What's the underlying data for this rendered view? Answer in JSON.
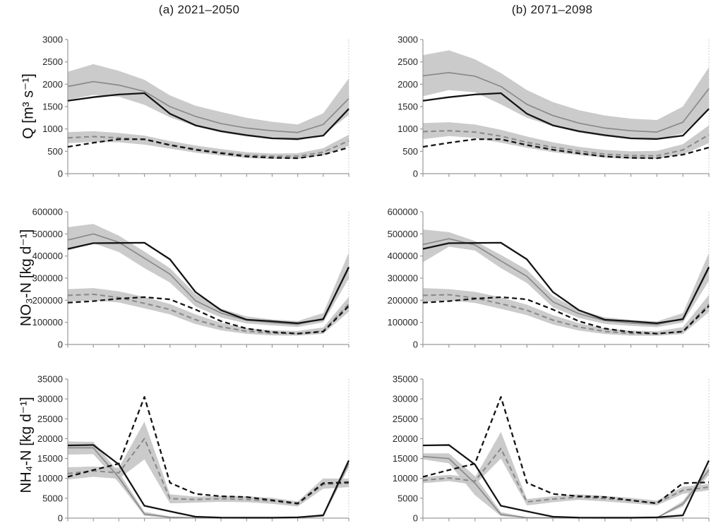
{
  "figure": {
    "column_titles": [
      "(a)  2021–2050",
      "(b)  2071–2098"
    ],
    "row_labels": [
      "Q [m³ s⁻¹]",
      "NO₃-N [kg d⁻¹]",
      "NH₄-N [kg d⁻¹]"
    ],
    "colors": {
      "band": "#c7c7c7",
      "gray_line": "#8a8a8a",
      "black_line": "#141414",
      "axis": "#9a9a9a",
      "text": "#262626",
      "background": "#ffffff"
    }
  },
  "chart_data": [
    {
      "type": "line",
      "panel": "a-Q",
      "title": "(a)  2021–2050",
      "ylabel": "Q [m³ s⁻¹]",
      "x": [
        1,
        2,
        3,
        4,
        5,
        6,
        7,
        8,
        9,
        10,
        11,
        12
      ],
      "xticklabels": [],
      "ylim": [
        0,
        3000
      ],
      "ytick_step": 500,
      "grid": false,
      "legend": "none",
      "series": [
        {
          "name": "gray_solid_mean",
          "color": "#8a8a8a",
          "dashed": false,
          "values": [
            1950,
            2060,
            1980,
            1840,
            1500,
            1280,
            1120,
            1020,
            960,
            920,
            1100,
            1680
          ],
          "band_upper": [
            2280,
            2450,
            2300,
            2100,
            1750,
            1520,
            1380,
            1250,
            1160,
            1100,
            1350,
            2130
          ],
          "band_lower": [
            1650,
            1760,
            1720,
            1540,
            1260,
            1060,
            920,
            830,
            780,
            740,
            870,
            1310
          ]
        },
        {
          "name": "black_solid_reference",
          "color": "#141414",
          "dashed": false,
          "values": [
            1630,
            1710,
            1770,
            1800,
            1340,
            1080,
            950,
            860,
            790,
            775,
            850,
            1450
          ]
        },
        {
          "name": "gray_dashed_mean",
          "color": "#8a8a8a",
          "dashed": true,
          "values": [
            800,
            830,
            800,
            760,
            645,
            550,
            475,
            415,
            390,
            390,
            480,
            735
          ],
          "band_upper": [
            930,
            950,
            910,
            850,
            730,
            630,
            550,
            480,
            450,
            455,
            570,
            870
          ],
          "band_lower": [
            680,
            710,
            700,
            650,
            560,
            470,
            405,
            350,
            330,
            330,
            410,
            620
          ]
        },
        {
          "name": "black_dashed_reference",
          "color": "#141414",
          "dashed": true,
          "values": [
            600,
            690,
            770,
            770,
            640,
            535,
            455,
            385,
            355,
            345,
            425,
            585
          ]
        }
      ]
    },
    {
      "type": "line",
      "panel": "b-Q",
      "title": "(b)  2071–2098",
      "ylabel": "Q [m³ s⁻¹]",
      "x": [
        1,
        2,
        3,
        4,
        5,
        6,
        7,
        8,
        9,
        10,
        11,
        12
      ],
      "xticklabels": [],
      "ylim": [
        0,
        3000
      ],
      "ytick_step": 500,
      "grid": false,
      "legend": "none",
      "series": [
        {
          "name": "gray_solid_mean",
          "color": "#8a8a8a",
          "dashed": false,
          "values": [
            2190,
            2260,
            2180,
            1950,
            1550,
            1300,
            1130,
            1020,
            960,
            930,
            1150,
            1900
          ],
          "band_upper": [
            2650,
            2760,
            2560,
            2250,
            1870,
            1600,
            1420,
            1300,
            1230,
            1200,
            1500,
            2380
          ],
          "band_lower": [
            1730,
            1870,
            1820,
            1550,
            1250,
            1060,
            920,
            830,
            780,
            760,
            900,
            1450
          ]
        },
        {
          "name": "black_solid_reference",
          "color": "#141414",
          "dashed": false,
          "values": [
            1630,
            1710,
            1770,
            1800,
            1340,
            1080,
            950,
            860,
            790,
            775,
            850,
            1450
          ]
        },
        {
          "name": "gray_dashed_mean",
          "color": "#8a8a8a",
          "dashed": true,
          "values": [
            940,
            960,
            930,
            840,
            700,
            590,
            505,
            435,
            405,
            400,
            530,
            870
          ],
          "band_upper": [
            1130,
            1150,
            1100,
            980,
            830,
            700,
            600,
            530,
            500,
            510,
            660,
            1080
          ],
          "band_lower": [
            770,
            840,
            800,
            690,
            580,
            480,
            415,
            355,
            330,
            330,
            430,
            680
          ]
        },
        {
          "name": "black_dashed_reference",
          "color": "#141414",
          "dashed": true,
          "values": [
            600,
            690,
            770,
            770,
            640,
            535,
            455,
            385,
            355,
            345,
            425,
            585
          ]
        }
      ]
    },
    {
      "type": "line",
      "panel": "a-NO3",
      "title": "(a)  2021–2050",
      "ylabel": "NO₃-N [kg d⁻¹]",
      "x": [
        1,
        2,
        3,
        4,
        5,
        6,
        7,
        8,
        9,
        10,
        11,
        12
      ],
      "xticklabels": [],
      "ylim": [
        0,
        600000
      ],
      "ytick_step": 100000,
      "grid": false,
      "legend": "none",
      "series": [
        {
          "name": "gray_solid_mean",
          "color": "#8a8a8a",
          "dashed": false,
          "values": [
            472000,
            500000,
            462000,
            390000,
            318000,
            198000,
            142000,
            110000,
            99000,
            91000,
            118000,
            345000
          ],
          "band_upper": [
            530000,
            545000,
            492000,
            420000,
            345000,
            228000,
            162000,
            127000,
            113000,
            106000,
            142000,
            415000
          ],
          "band_lower": [
            425000,
            458000,
            418000,
            345000,
            280000,
            172000,
            122000,
            95000,
            86000,
            79000,
            100000,
            298000
          ]
        },
        {
          "name": "black_solid_reference",
          "color": "#141414",
          "dashed": false,
          "values": [
            432000,
            458000,
            459000,
            460000,
            385000,
            237000,
            155000,
            112000,
            105000,
            96000,
            114000,
            350000
          ]
        },
        {
          "name": "gray_dashed_mean",
          "color": "#8a8a8a",
          "dashed": true,
          "values": [
            222000,
            227000,
            212000,
            186000,
            158000,
            112000,
            80000,
            60000,
            51000,
            49000,
            61000,
            183000
          ],
          "band_upper": [
            250000,
            255000,
            240000,
            215000,
            183000,
            136000,
            98000,
            74000,
            64000,
            61000,
            77000,
            215000
          ],
          "band_lower": [
            194000,
            200000,
            190000,
            163000,
            136000,
            92000,
            64000,
            48000,
            41000,
            40000,
            48000,
            148000
          ]
        },
        {
          "name": "black_dashed_reference",
          "color": "#141414",
          "dashed": true,
          "values": [
            189000,
            196000,
            207000,
            214000,
            204000,
            158000,
            105000,
            72000,
            56000,
            49000,
            58000,
            174000
          ]
        }
      ]
    },
    {
      "type": "line",
      "panel": "b-NO3",
      "title": "(b)  2071–2098",
      "ylabel": "NO₃-N [kg d⁻¹]",
      "x": [
        1,
        2,
        3,
        4,
        5,
        6,
        7,
        8,
        9,
        10,
        11,
        12
      ],
      "xticklabels": [],
      "ylim": [
        0,
        600000
      ],
      "ytick_step": 100000,
      "grid": false,
      "legend": "none",
      "series": [
        {
          "name": "gray_solid_mean",
          "color": "#8a8a8a",
          "dashed": false,
          "values": [
            452000,
            478000,
            450000,
            378000,
            308000,
            193000,
            139000,
            108000,
            97000,
            90000,
            118000,
            343000
          ],
          "band_upper": [
            520000,
            508000,
            468000,
            405000,
            338000,
            220000,
            156000,
            123000,
            111000,
            104000,
            142000,
            413000
          ],
          "band_lower": [
            372000,
            442000,
            425000,
            345000,
            278000,
            168000,
            120000,
            93000,
            84000,
            78000,
            99000,
            288000
          ]
        },
        {
          "name": "black_solid_reference",
          "color": "#141414",
          "dashed": false,
          "values": [
            432000,
            458000,
            459000,
            460000,
            385000,
            237000,
            155000,
            112000,
            105000,
            96000,
            114000,
            350000
          ]
        },
        {
          "name": "gray_dashed_mean",
          "color": "#8a8a8a",
          "dashed": true,
          "values": [
            222000,
            225000,
            210000,
            184000,
            155000,
            110000,
            79000,
            59000,
            50000,
            48000,
            60000,
            182000
          ],
          "band_upper": [
            255000,
            250000,
            238000,
            213000,
            180000,
            133000,
            96000,
            72000,
            63000,
            60000,
            78000,
            224000
          ],
          "band_lower": [
            193000,
            199000,
            188000,
            161000,
            133000,
            90000,
            63000,
            47000,
            40000,
            39000,
            47000,
            147000
          ]
        },
        {
          "name": "black_dashed_reference",
          "color": "#141414",
          "dashed": true,
          "values": [
            189000,
            196000,
            207000,
            214000,
            204000,
            158000,
            105000,
            72000,
            56000,
            49000,
            58000,
            174000
          ]
        }
      ]
    },
    {
      "type": "line",
      "panel": "a-NH4",
      "title": "(a)  2021–2050",
      "ylabel": "NH₄-N [kg d⁻¹]",
      "x": [
        1,
        2,
        3,
        4,
        5,
        6,
        7,
        8,
        9,
        10,
        11,
        12
      ],
      "xticklabels": [],
      "ylim": [
        0,
        35000
      ],
      "ytick_step": 5000,
      "grid": false,
      "legend": "none",
      "series": [
        {
          "name": "gray_solid_mean",
          "color": "#8a8a8a",
          "dashed": false,
          "values": [
            17700,
            17700,
            10200,
            1000,
            200,
            100,
            80,
            80,
            80,
            120,
            600,
            13800
          ],
          "band_upper": [
            19300,
            19200,
            11500,
            1600,
            400,
            200,
            150,
            150,
            150,
            250,
            1000,
            14800
          ],
          "band_lower": [
            16000,
            16100,
            8900,
            600,
            80,
            40,
            30,
            30,
            30,
            60,
            350,
            12800
          ]
        },
        {
          "name": "black_solid_reference",
          "color": "#141414",
          "dashed": false,
          "values": [
            18300,
            18400,
            13500,
            3100,
            1700,
            350,
            120,
            100,
            100,
            200,
            700,
            14500
          ]
        },
        {
          "name": "gray_dashed_mean",
          "color": "#8a8a8a",
          "dashed": true,
          "values": [
            11200,
            11900,
            11400,
            20000,
            4900,
            4700,
            4900,
            4700,
            4300,
            3500,
            8500,
            8800
          ],
          "band_upper": [
            12800,
            13000,
            12700,
            24300,
            6000,
            5400,
            5600,
            5500,
            5100,
            4200,
            10000,
            9900
          ],
          "band_lower": [
            9700,
            10400,
            9900,
            14800,
            3700,
            3900,
            4100,
            4000,
            3600,
            2900,
            7400,
            7800
          ]
        },
        {
          "name": "black_dashed_reference",
          "color": "#141414",
          "dashed": true,
          "values": [
            10400,
            12100,
            13700,
            30500,
            8900,
            6100,
            5500,
            5300,
            4500,
            3700,
            8800,
            9000
          ]
        }
      ]
    },
    {
      "type": "line",
      "panel": "b-NH4",
      "title": "(b)  2071–2098",
      "ylabel": "NH₄-N [kg d⁻¹]",
      "x": [
        1,
        2,
        3,
        4,
        5,
        6,
        7,
        8,
        9,
        10,
        11,
        12
      ],
      "xticklabels": [],
      "ylim": [
        0,
        35000
      ],
      "ytick_step": 5000,
      "grid": false,
      "legend": "none",
      "series": [
        {
          "name": "gray_solid_mean",
          "color": "#8a8a8a",
          "dashed": false,
          "values": [
            15500,
            15000,
            8800,
            900,
            100,
            80,
            60,
            60,
            60,
            100,
            3600,
            12100
          ],
          "band_upper": [
            16300,
            16300,
            10600,
            1500,
            250,
            150,
            120,
            120,
            120,
            200,
            4300,
            13100
          ],
          "band_lower": [
            14800,
            13800,
            5800,
            500,
            50,
            30,
            20,
            20,
            20,
            50,
            2900,
            10900
          ]
        },
        {
          "name": "black_solid_reference",
          "color": "#141414",
          "dashed": false,
          "values": [
            18300,
            18400,
            13500,
            3100,
            1700,
            350,
            120,
            100,
            100,
            200,
            700,
            14500
          ]
        },
        {
          "name": "gray_dashed_mean",
          "color": "#8a8a8a",
          "dashed": true,
          "values": [
            9500,
            10100,
            9300,
            17500,
            4100,
            4800,
            5300,
            4900,
            4400,
            3800,
            7000,
            7800
          ],
          "band_upper": [
            10300,
            10900,
            10200,
            21700,
            4800,
            5500,
            6000,
            5600,
            5100,
            4400,
            7900,
            8600
          ],
          "band_lower": [
            8800,
            9300,
            8400,
            15000,
            3200,
            4000,
            4600,
            4200,
            3700,
            3200,
            6100,
            7000
          ]
        },
        {
          "name": "black_dashed_reference",
          "color": "#141414",
          "dashed": true,
          "values": [
            10400,
            12100,
            13700,
            30500,
            8900,
            6100,
            5500,
            5300,
            4500,
            3700,
            8800,
            9000
          ]
        }
      ]
    }
  ]
}
